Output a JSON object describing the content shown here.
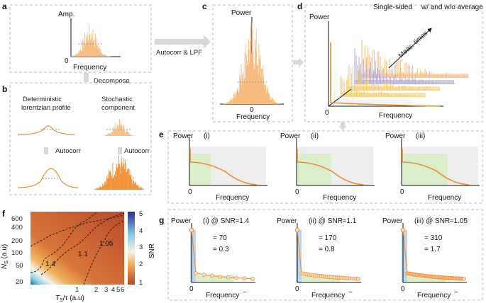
{
  "panels": {
    "a": {
      "label": "a",
      "ylabel": "Amp.",
      "xlabel": "Frequency",
      "origin": "0",
      "decompose_label": "Decompose"
    },
    "arrow_ac": {
      "label": "Autocorr & LPF"
    },
    "b": {
      "label": "b",
      "left_title_1": "Deterministic",
      "left_title_2": "lorentzian profile",
      "right_title_1": "Stochastic",
      "right_title_2": "component",
      "autocorr_left": "Autocorr",
      "autocorr_right": "Autocorr"
    },
    "c": {
      "label": "c",
      "ylabel": "Power",
      "xlabel": "Frequency",
      "origin": "0"
    },
    "d": {
      "label": "d",
      "title_left": "Single-sided",
      "title_right": "w/ and w/o average",
      "ylabel": "Power",
      "xlabel": "Frequency",
      "origin": "0",
      "depth_label": "Meas. times"
    },
    "e": {
      "label": "e",
      "subpanels": [
        {
          "tag": "(i)",
          "ylabel": "Power",
          "xlabel": "Frequency",
          "origin": "0",
          "cutoff": 0.28
        },
        {
          "tag": "(ii)",
          "ylabel": "Power",
          "xlabel": "Frequency",
          "origin": "0",
          "cutoff": 0.45
        },
        {
          "tag": "(iii)",
          "ylabel": "Power",
          "xlabel": "Frequency",
          "origin": "0",
          "cutoff": 0.6
        }
      ]
    },
    "f": {
      "label": "f",
      "xlabel_main": "T",
      "xlabel_sub": "S",
      "xlabel_tail": "/τ (a.u)",
      "ylabel_main": "N",
      "ylabel_sub": "S",
      "ylabel_tail": "(a.u)",
      "colorbar_label": "SNR",
      "colorbar_ticks": [
        "5",
        "4",
        "3",
        "2",
        "1"
      ],
      "yticks": [
        "600",
        "400",
        "200",
        "100",
        "50",
        "20"
      ],
      "xticks": [
        "1",
        "2",
        "3",
        "4",
        "5",
        "6"
      ],
      "contours": [
        "1.05",
        "1.1",
        "1.4"
      ]
    },
    "g": {
      "label": "g",
      "subpanels": [
        {
          "tag": "(i) @ SNR≈1.4",
          "val1": "= 70",
          "val2": "= 0.3",
          "ylabel": "Power",
          "xlabel": "Frequency",
          "origin": "0",
          "tilde": "~",
          "npts": 8
        },
        {
          "tag": "(ii) @ SNR≈1.1",
          "val1": "= 170",
          "val2": "= 0.8",
          "ylabel": "Power",
          "xlabel": "Frequency",
          "origin": "0",
          "tilde": "~",
          "npts": 30
        },
        {
          "tag": "(iii) @ SNR≈1.05",
          "val1": "= 310",
          "val2": "= 1.7",
          "ylabel": "Power",
          "xlabel": "Frequency",
          "origin": "0",
          "tilde": "~",
          "npts": 60
        }
      ]
    }
  },
  "colors": {
    "orange": "#f08c2e",
    "lightorange": "#f6b97a",
    "purple": "#b3a9d0",
    "yellow": "#f2cf6d",
    "green": "#d9eec9",
    "grey": "#eeeeee",
    "blue": "#bcd6ee",
    "dash": "#bbbbbb"
  }
}
